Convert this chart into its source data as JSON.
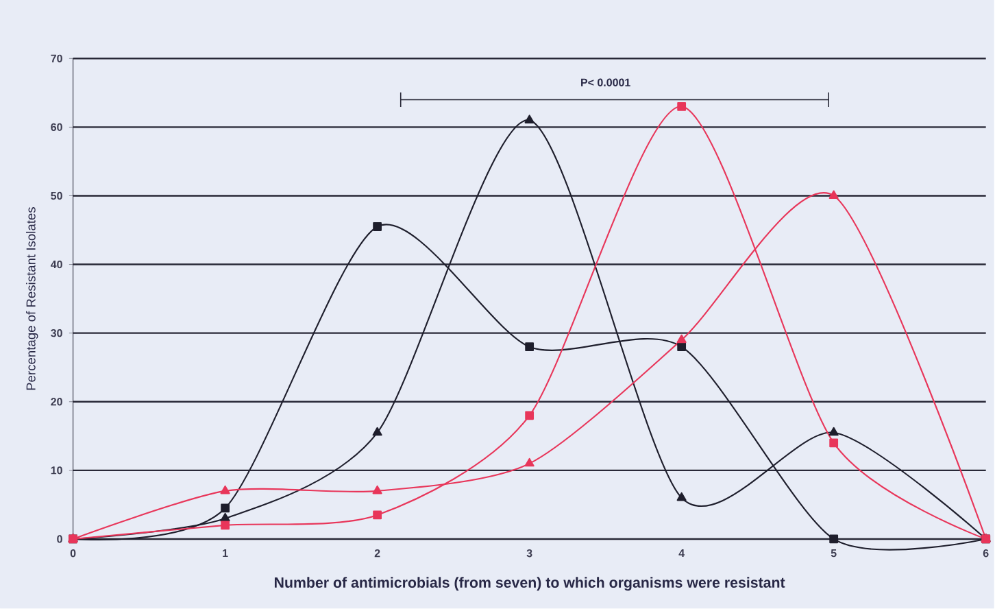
{
  "chart_data": {
    "type": "line",
    "xlabel": "Number of antimicrobials (from seven) to which organisms were resistant",
    "ylabel": "Percentage of Resistant Isolates",
    "x": [
      0,
      1,
      2,
      3,
      4,
      5,
      6
    ],
    "xlim": [
      0,
      6
    ],
    "xticks": [
      0,
      1,
      2,
      3,
      4,
      5,
      6
    ],
    "ylim": [
      0,
      70
    ],
    "yticks": [
      0,
      10,
      20,
      30,
      40,
      50,
      60,
      70
    ],
    "grid": "y",
    "line_style": "solid",
    "annotations": [
      "P< 0.0001"
    ],
    "series": [
      {
        "color": "#1e1e2c",
        "marker": "square",
        "values": [
          0,
          4.5,
          45.5,
          28,
          28,
          0,
          0
        ]
      },
      {
        "color": "#1e1e2c",
        "marker": "triangle",
        "values": [
          0,
          3,
          15.5,
          61,
          6,
          15.5,
          0
        ]
      },
      {
        "color": "#e8365a",
        "marker": "square",
        "values": [
          0,
          2,
          3.5,
          18,
          63,
          14,
          0
        ]
      },
      {
        "color": "#e8365a",
        "marker": "triangle",
        "values": [
          0,
          7,
          7,
          11,
          29,
          50,
          0
        ]
      }
    ]
  }
}
